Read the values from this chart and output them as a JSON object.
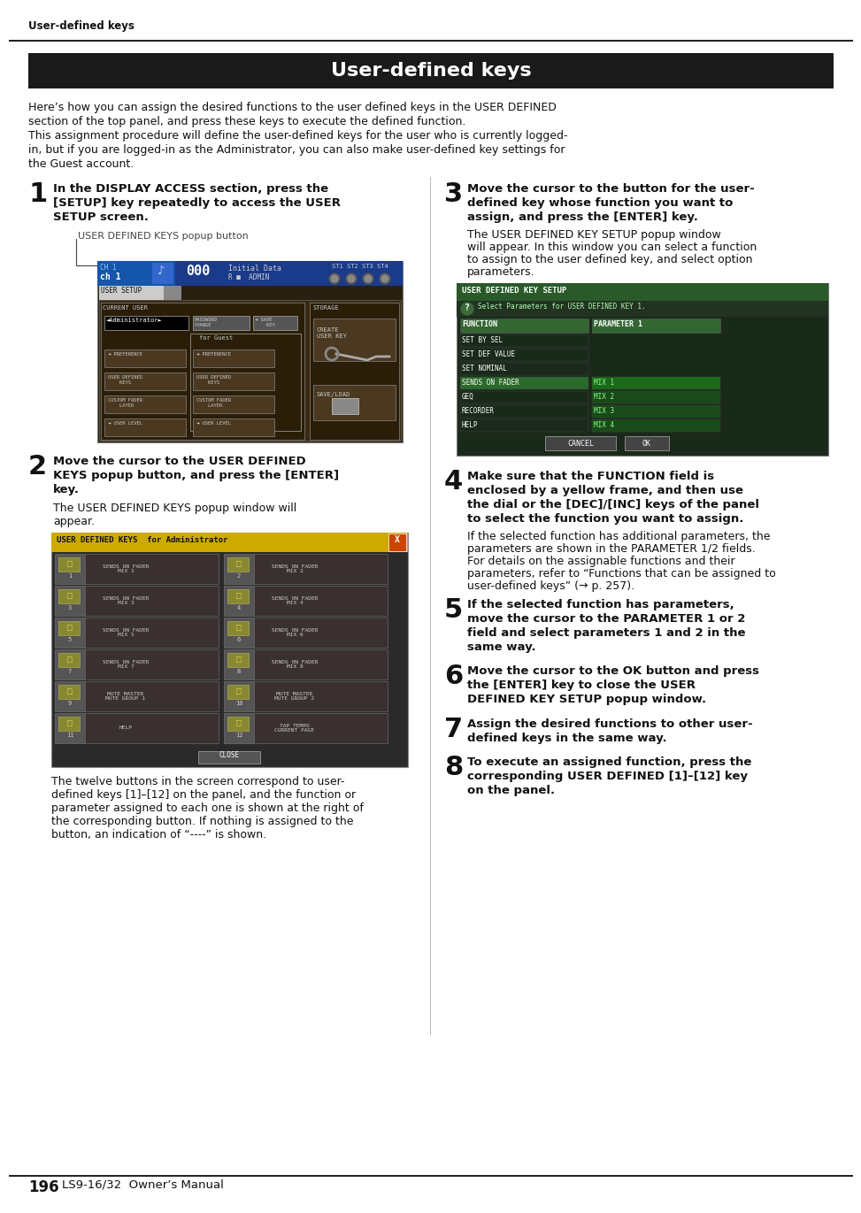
{
  "page_bg": "#ffffff",
  "header_bg": "#1a1a1a",
  "header_text": "User-defined keys",
  "top_label": "User-defined keys",
  "divider_color": "#222222",
  "col_divider": "#bbbbbb",
  "intro_lines": [
    "Here’s how you can assign the desired functions to the user defined keys in the USER DEFINED",
    "section of the top panel, and press these keys to execute the defined function.",
    "This assignment procedure will define the user-defined keys for the user who is currently logged-",
    "in, but if you are logged-in as the Administrator, you can also make user-defined key settings for",
    "the Guest account."
  ],
  "screen1_title_bg": "#2244aa",
  "screen1_bg": "#3a2a10",
  "screen2_title_bg": "#ccaa00",
  "screen2_bg": "#2a2a2a",
  "screen3_title_bg": "#336633",
  "screen3_bg": "#1a2a1a"
}
